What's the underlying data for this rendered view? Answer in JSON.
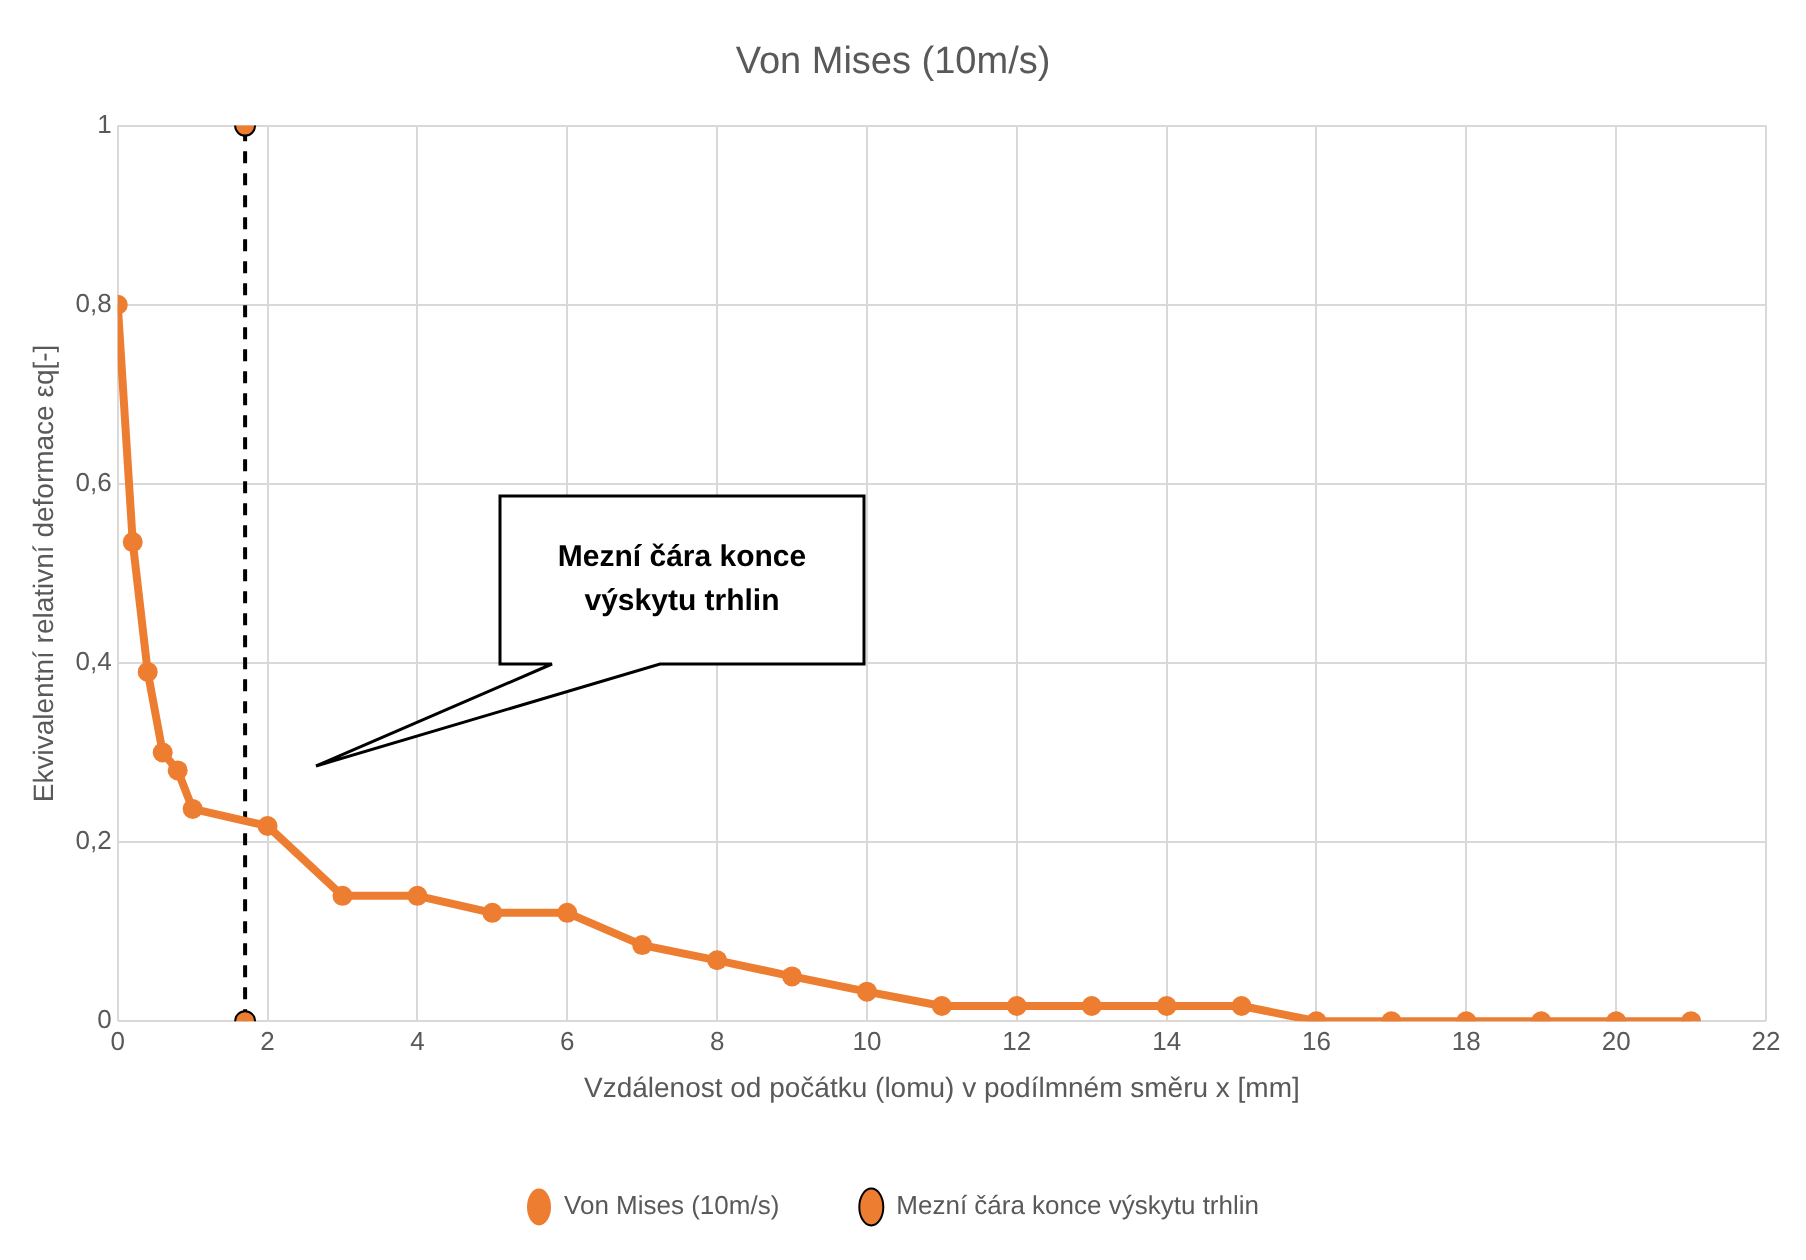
{
  "chart_data": {
    "type": "line",
    "title": "Von Mises (10m/s)",
    "xlabel": "Vzdálenost od počátku (lomu) v podílmném směru x [mm]",
    "ylabel": "Ekvivalentní relativní deformace εq[-]",
    "series": [
      {
        "name": "Von Mises (10m/s)",
        "color": "#ed7d31",
        "x": [
          0,
          0.2,
          0.4,
          0.6,
          0.8,
          1,
          2,
          3,
          4,
          5,
          6,
          7,
          8,
          9,
          10,
          11,
          12,
          13,
          14,
          15,
          16,
          17,
          18,
          19,
          20,
          21
        ],
        "values": [
          0.8,
          0.535,
          0.39,
          0.3,
          0.28,
          0.237,
          0.218,
          0.14,
          0.14,
          0.121,
          0.121,
          0.085,
          0.068,
          0.05,
          0.033,
          0.017,
          0.017,
          0.017,
          0.017,
          0.017,
          0,
          0,
          0,
          0,
          0,
          0
        ]
      },
      {
        "name": "Mezní čára konce výskytu trhlin",
        "color": "#ed7d31",
        "line_style": "dashed",
        "x": [
          1.7,
          1.7
        ],
        "values": [
          0,
          1
        ]
      }
    ],
    "xlim": [
      0,
      22
    ],
    "xticks": [
      0,
      2,
      4,
      6,
      8,
      10,
      12,
      14,
      16,
      18,
      20,
      22
    ],
    "ylim": [
      0,
      1
    ],
    "yticks": [
      0,
      {
        "value": 0.2,
        "label": "0,2"
      },
      {
        "value": 0.4,
        "label": "0,4"
      },
      {
        "value": 0.6,
        "label": "0,6"
      },
      {
        "value": 0.8,
        "label": "0,8"
      },
      1
    ],
    "grid": true,
    "legend": "bottom",
    "marker": "circle",
    "line_style": "solid",
    "annotations": [
      "Mezní čára konce\nvýskytu trhlin"
    ]
  }
}
